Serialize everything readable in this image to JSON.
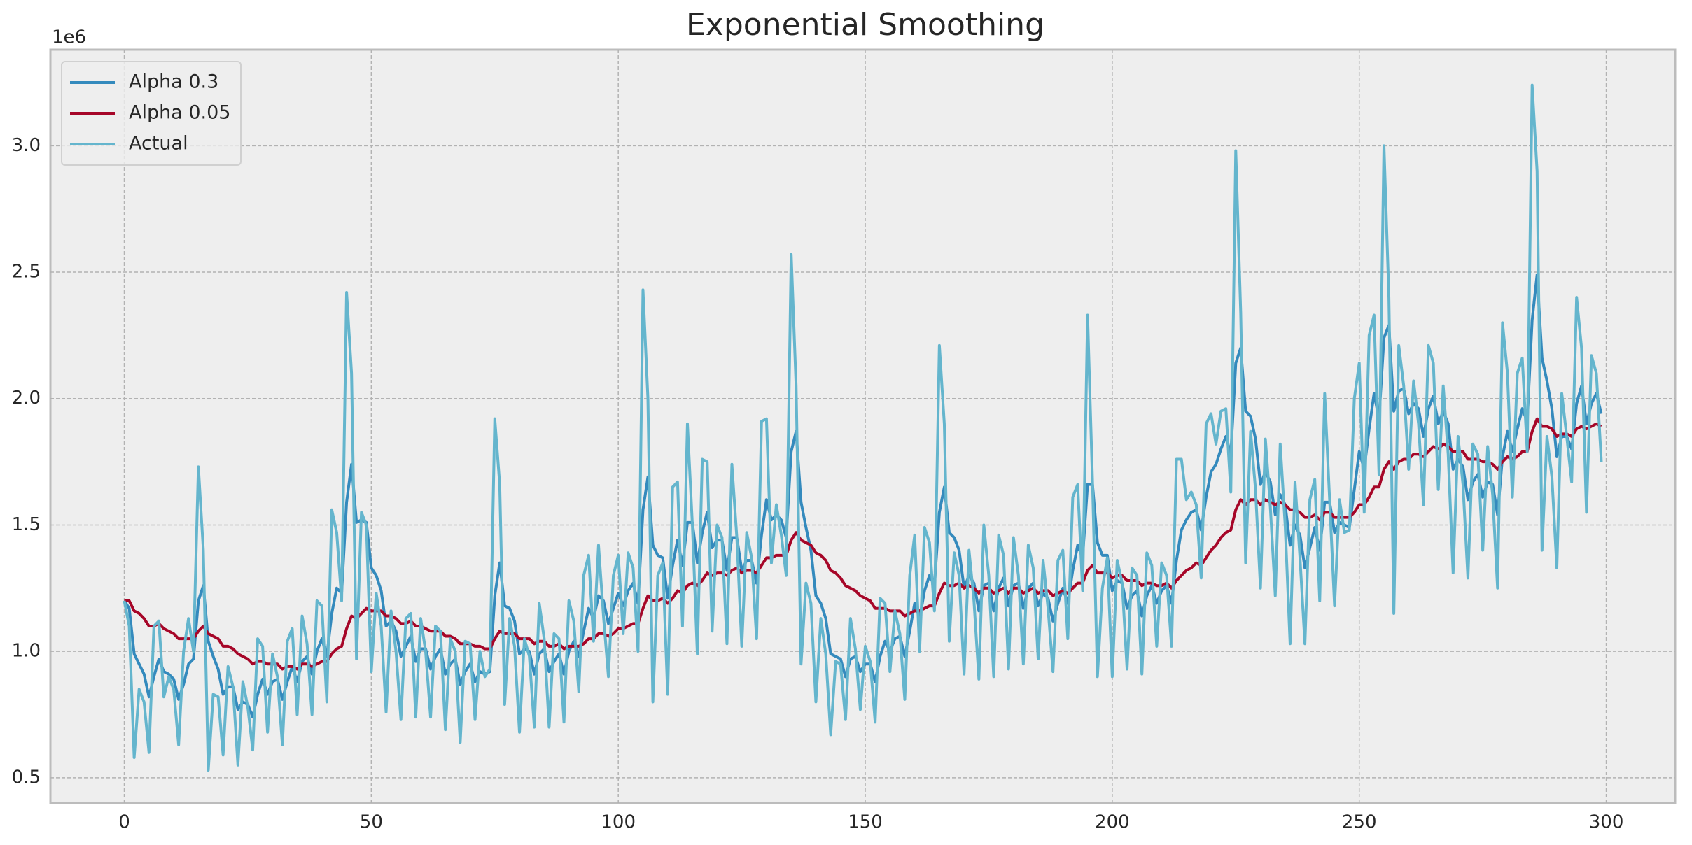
{
  "chart_data": {
    "type": "line",
    "title": "Exponential Smoothing",
    "y_offset_label": "1e6",
    "x": [
      0,
      1,
      2,
      3,
      4,
      5,
      6,
      7,
      8,
      9,
      10,
      11,
      12,
      13,
      14,
      15,
      16,
      17,
      18,
      19,
      20,
      21,
      22,
      23,
      24,
      25,
      26,
      27,
      28,
      29,
      30,
      31,
      32,
      33,
      34,
      35,
      36,
      37,
      38,
      39,
      40,
      41,
      42,
      43,
      44,
      45,
      46,
      47,
      48,
      49,
      50,
      51,
      52,
      53,
      54,
      55,
      56,
      57,
      58,
      59,
      60,
      61,
      62,
      63,
      64,
      65,
      66,
      67,
      68,
      69,
      70,
      71,
      72,
      73,
      74,
      75,
      76,
      77,
      78,
      79,
      80,
      81,
      82,
      83,
      84,
      85,
      86,
      87,
      88,
      89,
      90,
      91,
      92,
      93,
      94,
      95,
      96,
      97,
      98,
      99,
      100,
      101,
      102,
      103,
      104,
      105,
      106,
      107,
      108,
      109,
      110,
      111,
      112,
      113,
      114,
      115,
      116,
      117,
      118,
      119,
      120,
      121,
      122,
      123,
      124,
      125,
      126,
      127,
      128,
      129,
      130,
      131,
      132,
      133,
      134,
      135,
      136,
      137,
      138,
      139,
      140,
      141,
      142,
      143,
      144,
      145,
      146,
      147,
      148,
      149,
      150,
      151,
      152,
      153,
      154,
      155,
      156,
      157,
      158,
      159,
      160,
      161,
      162,
      163,
      164,
      165,
      166,
      167,
      168,
      169,
      170,
      171,
      172,
      173,
      174,
      175,
      176,
      177,
      178,
      179,
      180,
      181,
      182,
      183,
      184,
      185,
      186,
      187,
      188,
      189,
      190,
      191,
      192,
      193,
      194,
      195,
      196,
      197,
      198,
      199,
      200,
      201,
      202,
      203,
      204,
      205,
      206,
      207,
      208,
      209,
      210,
      211,
      212,
      213,
      214,
      215,
      216,
      217,
      218,
      219,
      220,
      221,
      222,
      223,
      224,
      225,
      226,
      227,
      228,
      229,
      230,
      231,
      232,
      233,
      234,
      235,
      236,
      237,
      238,
      239,
      240,
      241,
      242,
      243,
      244,
      245,
      246,
      247,
      248,
      249,
      250,
      251,
      252,
      253,
      254,
      255,
      256,
      257,
      258,
      259,
      260,
      261,
      262,
      263,
      264,
      265,
      266,
      267,
      268,
      269,
      270,
      271,
      272,
      273,
      274,
      275,
      276,
      277,
      278,
      279,
      280,
      281,
      282,
      283,
      284,
      285,
      286,
      287,
      288,
      289,
      290,
      291,
      292,
      293,
      294,
      295,
      296,
      297,
      298,
      299
    ],
    "series": [
      {
        "name": "Alpha 0.3",
        "color": "#348abd",
        "values": [
          1.2,
          1.17,
          0.99,
          0.95,
          0.91,
          0.82,
          0.9,
          0.97,
          0.92,
          0.91,
          0.89,
          0.81,
          0.87,
          0.95,
          0.97,
          1.2,
          1.26,
          1.04,
          0.98,
          0.93,
          0.83,
          0.86,
          0.86,
          0.77,
          0.8,
          0.79,
          0.74,
          0.83,
          0.89,
          0.83,
          0.88,
          0.89,
          0.81,
          0.88,
          0.94,
          0.88,
          0.96,
          0.98,
          0.91,
          1.0,
          1.05,
          0.98,
          1.15,
          1.25,
          1.23,
          1.59,
          1.74,
          1.51,
          1.52,
          1.51,
          1.33,
          1.3,
          1.24,
          1.1,
          1.12,
          1.08,
          0.98,
          1.02,
          1.06,
          0.96,
          1.01,
          1.01,
          0.93,
          0.98,
          1.01,
          0.91,
          0.95,
          0.97,
          0.87,
          0.92,
          0.95,
          0.88,
          0.92,
          0.91,
          0.92,
          1.22,
          1.35,
          1.18,
          1.17,
          1.12,
          0.99,
          1.01,
          1.0,
          0.91,
          0.99,
          1.01,
          0.92,
          0.96,
          0.99,
          0.91,
          1.0,
          1.04,
          0.98,
          1.08,
          1.17,
          1.13,
          1.22,
          1.2,
          1.11,
          1.17,
          1.23,
          1.18,
          1.24,
          1.27,
          1.19,
          1.56,
          1.69,
          1.42,
          1.38,
          1.37,
          1.21,
          1.34,
          1.44,
          1.34,
          1.51,
          1.51,
          1.35,
          1.47,
          1.55,
          1.41,
          1.44,
          1.44,
          1.32,
          1.45,
          1.45,
          1.32,
          1.36,
          1.36,
          1.27,
          1.46,
          1.6,
          1.52,
          1.54,
          1.52,
          1.45,
          1.79,
          1.87,
          1.59,
          1.49,
          1.4,
          1.22,
          1.19,
          1.13,
          0.99,
          0.98,
          0.97,
          0.9,
          0.97,
          0.98,
          0.92,
          0.95,
          0.95,
          0.88,
          0.98,
          1.04,
          1.0,
          1.05,
          1.06,
          0.98,
          1.08,
          1.19,
          1.13,
          1.24,
          1.3,
          1.26,
          1.55,
          1.65,
          1.47,
          1.45,
          1.4,
          1.25,
          1.3,
          1.27,
          1.16,
          1.26,
          1.27,
          1.16,
          1.25,
          1.29,
          1.18,
          1.26,
          1.27,
          1.17,
          1.25,
          1.27,
          1.18,
          1.23,
          1.21,
          1.12,
          1.19,
          1.25,
          1.19,
          1.32,
          1.42,
          1.37,
          1.66,
          1.66,
          1.43,
          1.38,
          1.38,
          1.24,
          1.28,
          1.27,
          1.17,
          1.22,
          1.24,
          1.14,
          1.22,
          1.26,
          1.19,
          1.24,
          1.26,
          1.19,
          1.36,
          1.48,
          1.52,
          1.55,
          1.56,
          1.48,
          1.61,
          1.71,
          1.74,
          1.8,
          1.85,
          1.78,
          2.14,
          2.2,
          1.95,
          1.93,
          1.84,
          1.66,
          1.71,
          1.67,
          1.54,
          1.62,
          1.58,
          1.42,
          1.5,
          1.46,
          1.33,
          1.41,
          1.49,
          1.4,
          1.59,
          1.59,
          1.47,
          1.51,
          1.5,
          1.49,
          1.64,
          1.79,
          1.72,
          1.88,
          2.02,
          1.92,
          2.24,
          2.29,
          1.95,
          2.03,
          2.04,
          1.94,
          1.98,
          1.96,
          1.85,
          1.96,
          2.01,
          1.9,
          1.95,
          1.9,
          1.72,
          1.76,
          1.73,
          1.6,
          1.67,
          1.7,
          1.61,
          1.67,
          1.66,
          1.54,
          1.77,
          1.87,
          1.79,
          1.88,
          1.96,
          1.91,
          2.31,
          2.49,
          2.16,
          2.07,
          1.96,
          1.77,
          1.85,
          1.85,
          1.8,
          1.98,
          2.05,
          1.9,
          1.98,
          2.02,
          1.94
        ]
      },
      {
        "name": "Alpha 0.05",
        "color": "#a60628",
        "values": [
          1.2,
          1.2,
          1.16,
          1.15,
          1.13,
          1.1,
          1.1,
          1.11,
          1.09,
          1.08,
          1.07,
          1.05,
          1.05,
          1.05,
          1.05,
          1.08,
          1.1,
          1.07,
          1.06,
          1.05,
          1.02,
          1.02,
          1.01,
          0.99,
          0.98,
          0.97,
          0.95,
          0.96,
          0.96,
          0.95,
          0.95,
          0.95,
          0.93,
          0.94,
          0.94,
          0.93,
          0.95,
          0.95,
          0.94,
          0.95,
          0.96,
          0.96,
          0.99,
          1.01,
          1.02,
          1.09,
          1.14,
          1.13,
          1.15,
          1.17,
          1.16,
          1.16,
          1.16,
          1.14,
          1.14,
          1.13,
          1.11,
          1.11,
          1.12,
          1.1,
          1.1,
          1.09,
          1.08,
          1.08,
          1.08,
          1.06,
          1.06,
          1.05,
          1.03,
          1.03,
          1.03,
          1.02,
          1.02,
          1.01,
          1.01,
          1.05,
          1.08,
          1.07,
          1.07,
          1.07,
          1.05,
          1.05,
          1.05,
          1.03,
          1.04,
          1.04,
          1.02,
          1.02,
          1.03,
          1.01,
          1.02,
          1.02,
          1.02,
          1.03,
          1.05,
          1.05,
          1.07,
          1.07,
          1.06,
          1.07,
          1.09,
          1.09,
          1.1,
          1.11,
          1.11,
          1.17,
          1.22,
          1.2,
          1.2,
          1.21,
          1.19,
          1.21,
          1.24,
          1.23,
          1.26,
          1.27,
          1.26,
          1.28,
          1.31,
          1.3,
          1.31,
          1.31,
          1.3,
          1.32,
          1.33,
          1.31,
          1.32,
          1.32,
          1.31,
          1.34,
          1.37,
          1.37,
          1.38,
          1.38,
          1.38,
          1.44,
          1.47,
          1.44,
          1.43,
          1.42,
          1.39,
          1.38,
          1.36,
          1.32,
          1.31,
          1.29,
          1.26,
          1.25,
          1.24,
          1.22,
          1.21,
          1.2,
          1.17,
          1.17,
          1.17,
          1.16,
          1.16,
          1.16,
          1.14,
          1.15,
          1.16,
          1.16,
          1.17,
          1.18,
          1.18,
          1.23,
          1.27,
          1.26,
          1.26,
          1.27,
          1.25,
          1.26,
          1.25,
          1.23,
          1.25,
          1.25,
          1.23,
          1.24,
          1.25,
          1.23,
          1.25,
          1.25,
          1.23,
          1.24,
          1.25,
          1.23,
          1.24,
          1.24,
          1.22,
          1.23,
          1.24,
          1.23,
          1.25,
          1.27,
          1.27,
          1.32,
          1.34,
          1.31,
          1.31,
          1.31,
          1.29,
          1.3,
          1.3,
          1.28,
          1.28,
          1.28,
          1.26,
          1.27,
          1.27,
          1.26,
          1.26,
          1.27,
          1.25,
          1.28,
          1.3,
          1.32,
          1.33,
          1.35,
          1.34,
          1.37,
          1.4,
          1.42,
          1.45,
          1.47,
          1.48,
          1.56,
          1.6,
          1.58,
          1.6,
          1.6,
          1.58,
          1.6,
          1.59,
          1.58,
          1.59,
          1.58,
          1.56,
          1.56,
          1.55,
          1.53,
          1.53,
          1.54,
          1.52,
          1.55,
          1.55,
          1.53,
          1.53,
          1.53,
          1.53,
          1.55,
          1.58,
          1.58,
          1.61,
          1.65,
          1.65,
          1.72,
          1.75,
          1.72,
          1.75,
          1.76,
          1.76,
          1.78,
          1.78,
          1.77,
          1.79,
          1.81,
          1.8,
          1.82,
          1.81,
          1.79,
          1.79,
          1.79,
          1.76,
          1.76,
          1.76,
          1.75,
          1.75,
          1.74,
          1.72,
          1.75,
          1.77,
          1.76,
          1.77,
          1.79,
          1.79,
          1.87,
          1.92,
          1.89,
          1.89,
          1.88,
          1.85,
          1.86,
          1.86,
          1.85,
          1.88,
          1.89,
          1.88,
          1.89,
          1.9,
          1.89
        ]
      },
      {
        "name": "Actual",
        "color": "#64b5cd",
        "values": [
          1.2,
          1.1,
          0.58,
          0.85,
          0.8,
          0.6,
          1.1,
          1.12,
          0.82,
          0.9,
          0.85,
          0.63,
          1.0,
          1.13,
          1.0,
          1.73,
          1.4,
          0.53,
          0.83,
          0.82,
          0.59,
          0.94,
          0.86,
          0.55,
          0.88,
          0.78,
          0.61,
          1.05,
          1.02,
          0.68,
          0.99,
          0.9,
          0.63,
          1.04,
          1.09,
          0.75,
          1.14,
          1.03,
          0.75,
          1.2,
          1.18,
          0.8,
          1.56,
          1.47,
          1.2,
          2.42,
          2.1,
          0.97,
          1.55,
          1.5,
          0.92,
          1.23,
          1.1,
          0.76,
          1.16,
          1.0,
          0.73,
          1.13,
          1.15,
          0.74,
          1.13,
          1.0,
          0.74,
          1.1,
          1.08,
          0.69,
          1.05,
          1.0,
          0.64,
          1.04,
          1.03,
          0.73,
          1.0,
          0.9,
          0.93,
          1.92,
          1.66,
          0.79,
          1.13,
          1.02,
          0.68,
          1.05,
          0.98,
          0.7,
          1.19,
          1.05,
          0.7,
          1.07,
          1.05,
          0.72,
          1.2,
          1.12,
          0.84,
          1.3,
          1.38,
          1.04,
          1.42,
          1.14,
          0.9,
          1.3,
          1.38,
          1.07,
          1.39,
          1.33,
          1.0,
          2.43,
          2.0,
          0.8,
          1.3,
          1.35,
          0.83,
          1.65,
          1.67,
          1.1,
          1.9,
          1.5,
          0.99,
          1.76,
          1.75,
          1.08,
          1.5,
          1.45,
          1.03,
          1.74,
          1.45,
          1.02,
          1.47,
          1.37,
          1.05,
          1.91,
          1.92,
          1.35,
          1.58,
          1.46,
          1.3,
          2.57,
          2.05,
          0.95,
          1.27,
          1.19,
          0.8,
          1.13,
          0.99,
          0.67,
          0.96,
          0.95,
          0.73,
          1.13,
          1.01,
          0.77,
          1.02,
          0.96,
          0.72,
          1.21,
          1.19,
          0.92,
          1.16,
          1.07,
          0.81,
          1.3,
          1.46,
          1.0,
          1.49,
          1.43,
          1.16,
          2.21,
          1.9,
          1.04,
          1.39,
          1.3,
          0.91,
          1.4,
          1.2,
          0.89,
          1.5,
          1.3,
          0.9,
          1.46,
          1.38,
          0.93,
          1.45,
          1.3,
          0.95,
          1.42,
          1.33,
          0.97,
          1.36,
          1.17,
          0.92,
          1.36,
          1.4,
          1.05,
          1.61,
          1.66,
          1.24,
          2.33,
          1.67,
          0.9,
          1.25,
          1.37,
          0.9,
          1.36,
          1.27,
          0.93,
          1.33,
          1.3,
          0.91,
          1.39,
          1.34,
          1.02,
          1.35,
          1.3,
          1.02,
          1.76,
          1.76,
          1.6,
          1.63,
          1.58,
          1.29,
          1.9,
          1.94,
          1.82,
          1.95,
          1.96,
          1.63,
          2.98,
          2.34,
          1.35,
          1.87,
          1.64,
          1.25,
          1.84,
          1.57,
          1.22,
          1.82,
          1.5,
          1.03,
          1.67,
          1.37,
          1.03,
          1.6,
          1.68,
          1.2,
          2.02,
          1.6,
          1.18,
          1.6,
          1.47,
          1.48,
          2.0,
          2.14,
          1.55,
          2.25,
          2.33,
          1.7,
          3.0,
          2.4,
          1.15,
          2.21,
          2.05,
          1.72,
          2.07,
          1.9,
          1.58,
          2.21,
          2.14,
          1.64,
          2.05,
          1.78,
          1.31,
          1.85,
          1.66,
          1.29,
          1.82,
          1.78,
          1.4,
          1.81,
          1.62,
          1.25,
          2.3,
          2.1,
          1.61,
          2.1,
          2.16,
          1.79,
          3.24,
          2.9,
          1.4,
          1.85,
          1.69,
          1.33,
          2.02,
          1.85,
          1.67,
          2.4,
          2.2,
          1.55,
          2.17,
          2.1,
          1.75
        ]
      }
    ],
    "xlim": [
      -14.95,
      313.95
    ],
    "xticks": [
      0,
      50,
      100,
      150,
      200,
      250,
      300
    ],
    "ylim": [
      0.4,
      3.38
    ],
    "yticks": [
      0.5,
      {
        "value": 1,
        "label": "1.0"
      },
      1.5,
      {
        "value": 2,
        "label": "2.0"
      },
      2.5,
      {
        "value": 3,
        "label": "3.0"
      }
    ],
    "grid": true,
    "legend": "upper left"
  }
}
